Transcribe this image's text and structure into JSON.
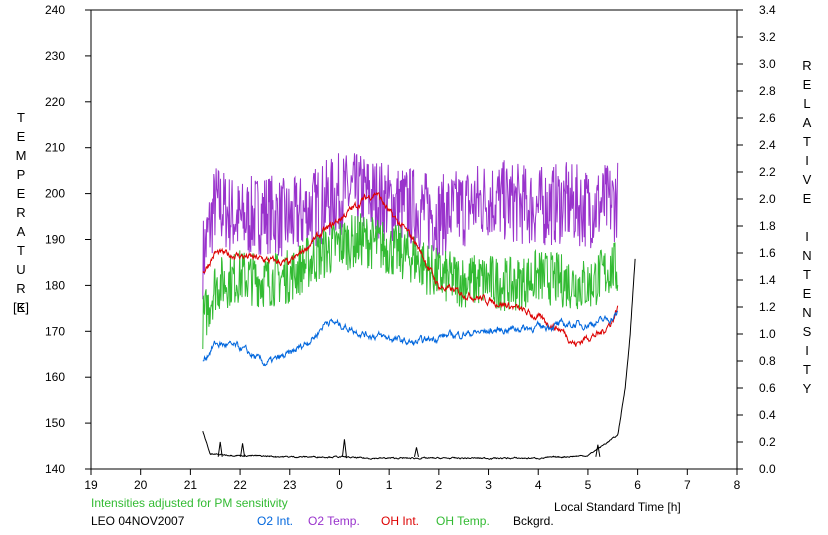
{
  "chart_data": {
    "type": "line",
    "xlabel": "Local Standard Time [h]",
    "ylabel_left": "TEMPERATURE",
    "ylabel_left_unit": "[K]",
    "ylabel_right": "RELATIVE INTENSITY",
    "x_ticks": [
      19,
      20,
      21,
      22,
      23,
      0,
      1,
      2,
      3,
      4,
      5,
      6,
      7,
      8
    ],
    "xlim_hours": [
      19,
      32
    ],
    "ylim_left": [
      140,
      240
    ],
    "y_ticks_left": [
      140,
      150,
      160,
      170,
      180,
      190,
      200,
      210,
      220,
      230,
      240
    ],
    "ylim_right": [
      0.0,
      3.4
    ],
    "y_ticks_right": [
      "0.0",
      "0.2",
      "0.4",
      "0.6",
      "0.8",
      "1.0",
      "1.2",
      "1.4",
      "1.6",
      "1.8",
      "2.0",
      "2.2",
      "2.4",
      "2.6",
      "2.8",
      "3.0",
      "3.2",
      "3.4"
    ],
    "note": "Intensities adjusted for PM sensitivity",
    "station": "LEO 04NOV2007",
    "legend": [
      {
        "label": "O2 Int.",
        "color": "#0066dd"
      },
      {
        "label": "O2 Temp.",
        "color": "#9933cc"
      },
      {
        "label": "OH Int.",
        "color": "#dd0000"
      },
      {
        "label": "OH Temp.",
        "color": "#33bb33"
      },
      {
        "label": "Bckgrd.",
        "color": "#000000"
      }
    ],
    "series": [
      {
        "name": "O2 Temp.",
        "axis": "left",
        "color": "#9933cc",
        "jitter": 9,
        "points": [
          [
            21.25,
            186
          ],
          [
            21.5,
            198
          ],
          [
            21.75,
            196
          ],
          [
            22,
            194
          ],
          [
            22.5,
            196
          ],
          [
            23,
            194
          ],
          [
            23.5,
            197
          ],
          [
            24,
            200
          ],
          [
            24.5,
            200
          ],
          [
            25,
            198
          ],
          [
            25.5,
            197
          ],
          [
            26,
            195
          ],
          [
            26.5,
            197
          ],
          [
            27,
            199
          ],
          [
            27.5,
            198
          ],
          [
            28,
            197
          ],
          [
            28.5,
            198
          ],
          [
            29,
            197
          ],
          [
            29.5,
            198
          ],
          [
            29.6,
            199
          ]
        ]
      },
      {
        "name": "OH Temp.",
        "axis": "left",
        "color": "#33bb33",
        "jitter": 6,
        "points": [
          [
            21.25,
            172
          ],
          [
            21.5,
            180
          ],
          [
            22,
            182
          ],
          [
            22.5,
            181
          ],
          [
            23,
            182
          ],
          [
            23.5,
            186
          ],
          [
            24,
            189
          ],
          [
            24.5,
            190
          ],
          [
            25,
            188
          ],
          [
            25.5,
            186
          ],
          [
            26,
            182
          ],
          [
            26.5,
            181
          ],
          [
            27,
            181
          ],
          [
            27.5,
            180
          ],
          [
            28,
            182
          ],
          [
            28.5,
            181
          ],
          [
            29,
            180
          ],
          [
            29.5,
            184
          ],
          [
            29.6,
            183
          ]
        ]
      },
      {
        "name": "OH Int.",
        "axis": "right",
        "color": "#dd0000",
        "jitter": 0.02,
        "points": [
          [
            21.25,
            1.45
          ],
          [
            21.5,
            1.6
          ],
          [
            22,
            1.58
          ],
          [
            22.5,
            1.55
          ],
          [
            23,
            1.52
          ],
          [
            23.5,
            1.7
          ],
          [
            24,
            1.85
          ],
          [
            24.5,
            2.0
          ],
          [
            24.75,
            2.05
          ],
          [
            25,
            1.9
          ],
          [
            25.5,
            1.7
          ],
          [
            26,
            1.35
          ],
          [
            26.5,
            1.3
          ],
          [
            27,
            1.25
          ],
          [
            27.5,
            1.2
          ],
          [
            28,
            1.12
          ],
          [
            28.5,
            1.02
          ],
          [
            28.75,
            0.92
          ],
          [
            29,
            0.98
          ],
          [
            29.25,
            1.0
          ],
          [
            29.5,
            1.1
          ],
          [
            29.6,
            1.2
          ]
        ]
      },
      {
        "name": "O2 Int.",
        "axis": "right",
        "color": "#0066dd",
        "jitter": 0.02,
        "points": [
          [
            21.25,
            0.8
          ],
          [
            21.5,
            0.93
          ],
          [
            22,
            0.9
          ],
          [
            22.5,
            0.78
          ],
          [
            23,
            0.85
          ],
          [
            23.5,
            0.98
          ],
          [
            23.75,
            1.1
          ],
          [
            24,
            1.07
          ],
          [
            24.5,
            1.0
          ],
          [
            25,
            0.97
          ],
          [
            25.5,
            0.93
          ],
          [
            26,
            0.98
          ],
          [
            26.5,
            1.0
          ],
          [
            27,
            1.02
          ],
          [
            27.5,
            1.04
          ],
          [
            28,
            1.05
          ],
          [
            28.5,
            1.07
          ],
          [
            29,
            1.07
          ],
          [
            29.5,
            1.12
          ],
          [
            29.6,
            1.15
          ]
        ]
      },
      {
        "name": "Bckgrd.",
        "axis": "right",
        "color": "#000000",
        "jitter": 0.004,
        "points": [
          [
            21.25,
            0.28
          ],
          [
            21.4,
            0.11
          ],
          [
            22,
            0.1
          ],
          [
            23,
            0.09
          ],
          [
            24,
            0.09
          ],
          [
            24.5,
            0.08
          ],
          [
            25,
            0.08
          ],
          [
            26,
            0.08
          ],
          [
            27,
            0.08
          ],
          [
            28,
            0.08
          ],
          [
            29,
            0.1
          ],
          [
            29.4,
            0.2
          ],
          [
            29.6,
            0.25
          ],
          [
            29.75,
            0.6
          ],
          [
            29.85,
            1.0
          ],
          [
            29.95,
            1.56
          ]
        ]
      }
    ],
    "spikes": [
      {
        "name": "Bckgrd.",
        "points": [
          [
            21.6,
            0.2
          ],
          [
            22.05,
            0.19
          ],
          [
            24.1,
            0.22
          ],
          [
            25.55,
            0.16
          ],
          [
            29.2,
            0.18
          ]
        ]
      }
    ]
  }
}
